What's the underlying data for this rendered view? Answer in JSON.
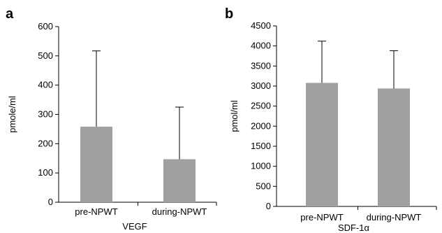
{
  "chart_data": [
    {
      "panel": "a",
      "type": "bar",
      "categories": [
        "pre-NPWT",
        "during-NPWT"
      ],
      "values": [
        258,
        147
      ],
      "error_upper": [
        517,
        325
      ],
      "xlabel": "VEGF",
      "ylabel": "pmole/ml",
      "ylim": [
        0,
        600
      ],
      "yticks": [
        0,
        100,
        200,
        300,
        400,
        500,
        600
      ],
      "bar_color": "#a0a0a0"
    },
    {
      "panel": "b",
      "type": "bar",
      "categories": [
        "pre-NPWT",
        "during-NPWT"
      ],
      "values": [
        3080,
        2940
      ],
      "error_upper": [
        4120,
        3880
      ],
      "xlabel": "SDF-1α",
      "ylabel": "pmol/ml",
      "ylim": [
        0,
        4500
      ],
      "yticks": [
        0,
        500,
        1000,
        1500,
        2000,
        2500,
        3000,
        3500,
        4000,
        4500
      ],
      "bar_color": "#a0a0a0"
    }
  ]
}
